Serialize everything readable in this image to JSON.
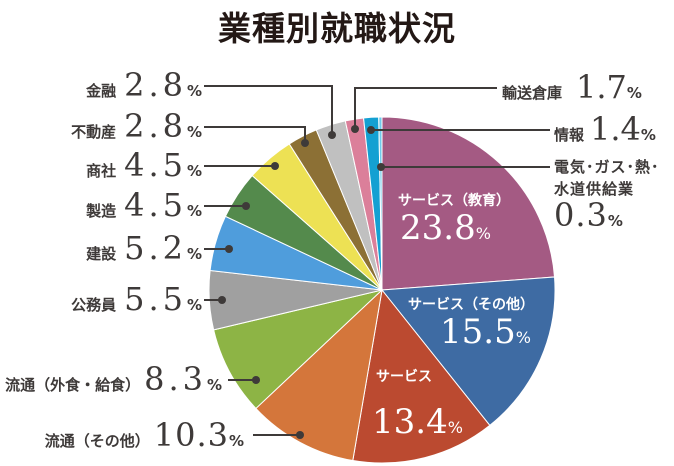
{
  "title": "業種別就職状況",
  "chart_data": {
    "type": "pie",
    "title": "業種別就職状況",
    "start_angle": "12 o'clock",
    "direction": "clockwise",
    "unit": "%",
    "slices": [
      {
        "label": "サービス（教育）",
        "value": 23.8,
        "color": "#a45a83"
      },
      {
        "label": "サービス（その他）",
        "value": 15.5,
        "color": "#3e6ba3"
      },
      {
        "label": "サービス",
        "value": 13.4,
        "color": "#bb4a30"
      },
      {
        "label": "流通（その他）",
        "value": 10.3,
        "color": "#d4763b"
      },
      {
        "label": "流通（外食・給食）",
        "value": 8.3,
        "color": "#8db445"
      },
      {
        "label": "公務員",
        "value": 5.5,
        "color": "#a0a0a0"
      },
      {
        "label": "建設",
        "value": 5.2,
        "color": "#4f9ddc"
      },
      {
        "label": "製造",
        "value": 4.5,
        "color": "#548a4c"
      },
      {
        "label": "商社",
        "value": 4.5,
        "color": "#ede154"
      },
      {
        "label": "不動産",
        "value": 2.8,
        "color": "#8c7035"
      },
      {
        "label": "金融",
        "value": 2.8,
        "color": "#c0c0c0"
      },
      {
        "label": "輸送倉庫",
        "value": 1.7,
        "color": "#db7f9a"
      },
      {
        "label": "情報",
        "value": 1.4,
        "color": "#14a0d2"
      },
      {
        "label": "電気・ガス・熱・水道供給業",
        "value": 0.3,
        "color": "#6fcbeb"
      }
    ]
  },
  "labels": {
    "kinyu": {
      "name": "金融",
      "value": "2.8",
      "pct": "%"
    },
    "fudosan": {
      "name": "不動産",
      "value": "2.8",
      "pct": "%"
    },
    "shosha": {
      "name": "商社",
      "value": "4.5",
      "pct": "%"
    },
    "seizo": {
      "name": "製造",
      "value": "4.5",
      "pct": "%"
    },
    "kensetsu": {
      "name": "建設",
      "value": "5.2",
      "pct": "%"
    },
    "komuin": {
      "name": "公務員",
      "value": "5.5",
      "pct": "%"
    },
    "ryutsu_gaishoku": {
      "name": "流通（外食・給食）",
      "value": "8.3",
      "pct": "%"
    },
    "ryutsu_other": {
      "name": "流通（その他）",
      "value": "10.3",
      "pct": "%"
    },
    "yuso": {
      "name": "輸送倉庫",
      "value": "1.7",
      "pct": "%"
    },
    "joho": {
      "name": "情報",
      "value": "1.4",
      "pct": "%"
    },
    "denki": {
      "name_line1": "電気･ガス･熱･",
      "name_line2": "水道供給業",
      "value": "0.3",
      "pct": "%"
    },
    "service_edu": {
      "name": "サービス（教育）",
      "value": "23.8",
      "pct": "%"
    },
    "service_other": {
      "name": "サービス（その他）",
      "value": "15.5",
      "pct": "%"
    },
    "service": {
      "name": "サービス",
      "value": "13.4",
      "pct": "%"
    }
  },
  "colors": {
    "text": "#3e3a39",
    "leader": "#3e3a39",
    "title": "#231815"
  }
}
